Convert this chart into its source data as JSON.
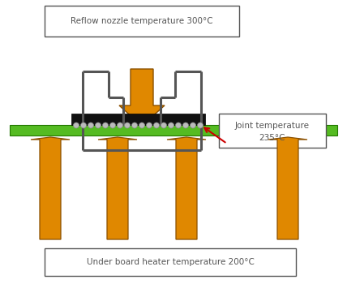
{
  "bg_color": "#ffffff",
  "arrow_color_top": "#e08800",
  "arrow_color_bottom_shade": "#8b5000",
  "nozzle_frame_color": "#555555",
  "green_board_color": "#55bb22",
  "green_board_edge": "#227700",
  "ic_body_color": "#111111",
  "ic_bump_color": "#bbbbbb",
  "ic_bump_edge": "#888888",
  "red_arrow_color": "#cc0000",
  "box_edge_color": "#555555",
  "text_color": "#555555",
  "top_box_text": "Reflow nozzle temperature 300°C",
  "bottom_box_text": "Under board heater temperature 200°C",
  "joint_box_line1": "Joint temperature",
  "joint_box_line2": "235°C",
  "figsize": [
    4.28,
    3.5
  ],
  "dpi": 100,
  "lw_nozzle": 2.2
}
